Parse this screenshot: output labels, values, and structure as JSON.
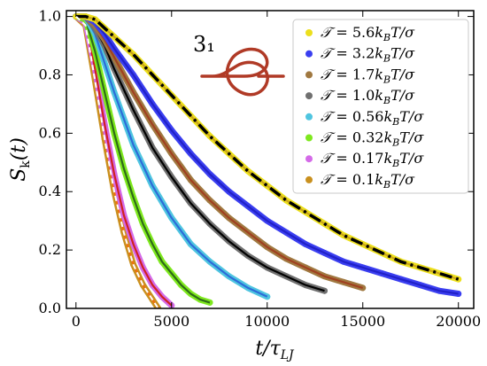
{
  "chart_data": {
    "type": "scatter",
    "xlabel": "t/τ_LJ",
    "ylabel": "S_k(t)",
    "xlim": [
      -500,
      20800
    ],
    "ylim": [
      0.0,
      1.02
    ],
    "xticks": [
      0,
      5000,
      10000,
      15000,
      20000
    ],
    "yticks": [
      0.0,
      0.2,
      0.4,
      0.6,
      0.8,
      1.0
    ],
    "ytick_labels": [
      "0.0",
      "0.2",
      "0.4",
      "0.6",
      "0.8",
      "1.0"
    ],
    "legend_position": "top-right",
    "inset_label": "3₁",
    "series": [
      {
        "name": "𝒯 = 5.6k_BT/σ",
        "color": "#ecdf1c",
        "fit_color": "#c9a21c",
        "x": [
          0,
          500,
          1000,
          1500,
          2000,
          3000,
          4000,
          5000,
          6000,
          7000,
          8000,
          9000,
          10000,
          11000,
          12000,
          13000,
          14000,
          15000,
          16000,
          17000,
          18000,
          19000,
          20000
        ],
        "y": [
          1.0,
          1.0,
          0.99,
          0.96,
          0.93,
          0.87,
          0.8,
          0.73,
          0.66,
          0.59,
          0.53,
          0.47,
          0.42,
          0.37,
          0.33,
          0.29,
          0.25,
          0.22,
          0.19,
          0.16,
          0.14,
          0.12,
          0.1
        ]
      },
      {
        "name": "𝒯 = 3.2k_BT/σ",
        "color": "#3a3ef0",
        "fit_color": "#2121c8",
        "x": [
          0,
          500,
          1000,
          1500,
          2000,
          3000,
          4000,
          5000,
          6000,
          7000,
          8000,
          9000,
          10000,
          11000,
          12000,
          13000,
          14000,
          15000,
          16000,
          17000,
          18000,
          19000,
          20000
        ],
        "y": [
          1.0,
          1.0,
          0.98,
          0.94,
          0.89,
          0.8,
          0.7,
          0.61,
          0.53,
          0.46,
          0.4,
          0.35,
          0.3,
          0.26,
          0.22,
          0.19,
          0.16,
          0.14,
          0.12,
          0.1,
          0.08,
          0.06,
          0.05
        ]
      },
      {
        "name": "𝒯 = 1.7k_BT/σ",
        "color": "#a07840",
        "fit_color": "#a04020",
        "x": [
          0,
          500,
          1000,
          1500,
          2000,
          3000,
          4000,
          5000,
          6000,
          7000,
          8000,
          9000,
          10000,
          11000,
          12000,
          13000,
          14000,
          15000
        ],
        "y": [
          1.0,
          1.0,
          0.97,
          0.92,
          0.86,
          0.74,
          0.63,
          0.53,
          0.44,
          0.37,
          0.31,
          0.26,
          0.21,
          0.17,
          0.14,
          0.11,
          0.09,
          0.07
        ]
      },
      {
        "name": "𝒯 = 1.0k_BT/σ",
        "color": "#707070",
        "fit_color": "#000000",
        "x": [
          0,
          500,
          1000,
          1500,
          2000,
          3000,
          4000,
          5000,
          6000,
          7000,
          8000,
          9000,
          10000,
          11000,
          12000,
          13000
        ],
        "y": [
          1.0,
          1.0,
          0.96,
          0.9,
          0.82,
          0.68,
          0.55,
          0.45,
          0.36,
          0.29,
          0.23,
          0.18,
          0.14,
          0.11,
          0.08,
          0.06
        ]
      },
      {
        "name": "𝒯 = 0.56k_BT/σ",
        "color": "#4fc5e0",
        "fit_color": "#2c6cd8",
        "x": [
          0,
          500,
          1000,
          1500,
          2000,
          3000,
          4000,
          5000,
          6000,
          7000,
          8000,
          9000,
          10000
        ],
        "y": [
          1.0,
          1.0,
          0.94,
          0.84,
          0.74,
          0.56,
          0.42,
          0.31,
          0.22,
          0.16,
          0.11,
          0.07,
          0.04
        ]
      },
      {
        "name": "𝒯 = 0.32k_BT/σ",
        "color": "#7ee81e",
        "fit_color": "#2e6a18",
        "x": [
          0,
          500,
          1000,
          1500,
          2000,
          2500,
          3000,
          3500,
          4000,
          4500,
          5000,
          5500,
          6000,
          6500,
          7000
        ],
        "y": [
          1.0,
          0.99,
          0.88,
          0.74,
          0.6,
          0.48,
          0.38,
          0.29,
          0.22,
          0.16,
          0.12,
          0.08,
          0.05,
          0.03,
          0.02
        ]
      },
      {
        "name": "𝒯 = 0.17k_BT/σ",
        "color": "#d46ae8",
        "fit_color": "#d02020",
        "x": [
          0,
          500,
          1000,
          1500,
          2000,
          2500,
          3000,
          3500,
          4000,
          4500,
          5000
        ],
        "y": [
          1.0,
          0.98,
          0.82,
          0.63,
          0.46,
          0.32,
          0.22,
          0.14,
          0.08,
          0.04,
          0.01
        ]
      },
      {
        "name": "𝒯 = 0.1k_BT/σ",
        "color": "#c9901e",
        "fit_color": "#f07010",
        "x": [
          0,
          500,
          1000,
          1500,
          2000,
          2500,
          3000,
          3500,
          4000,
          4300
        ],
        "y": [
          1.0,
          0.97,
          0.78,
          0.58,
          0.4,
          0.26,
          0.15,
          0.08,
          0.03,
          0.0
        ]
      }
    ]
  }
}
